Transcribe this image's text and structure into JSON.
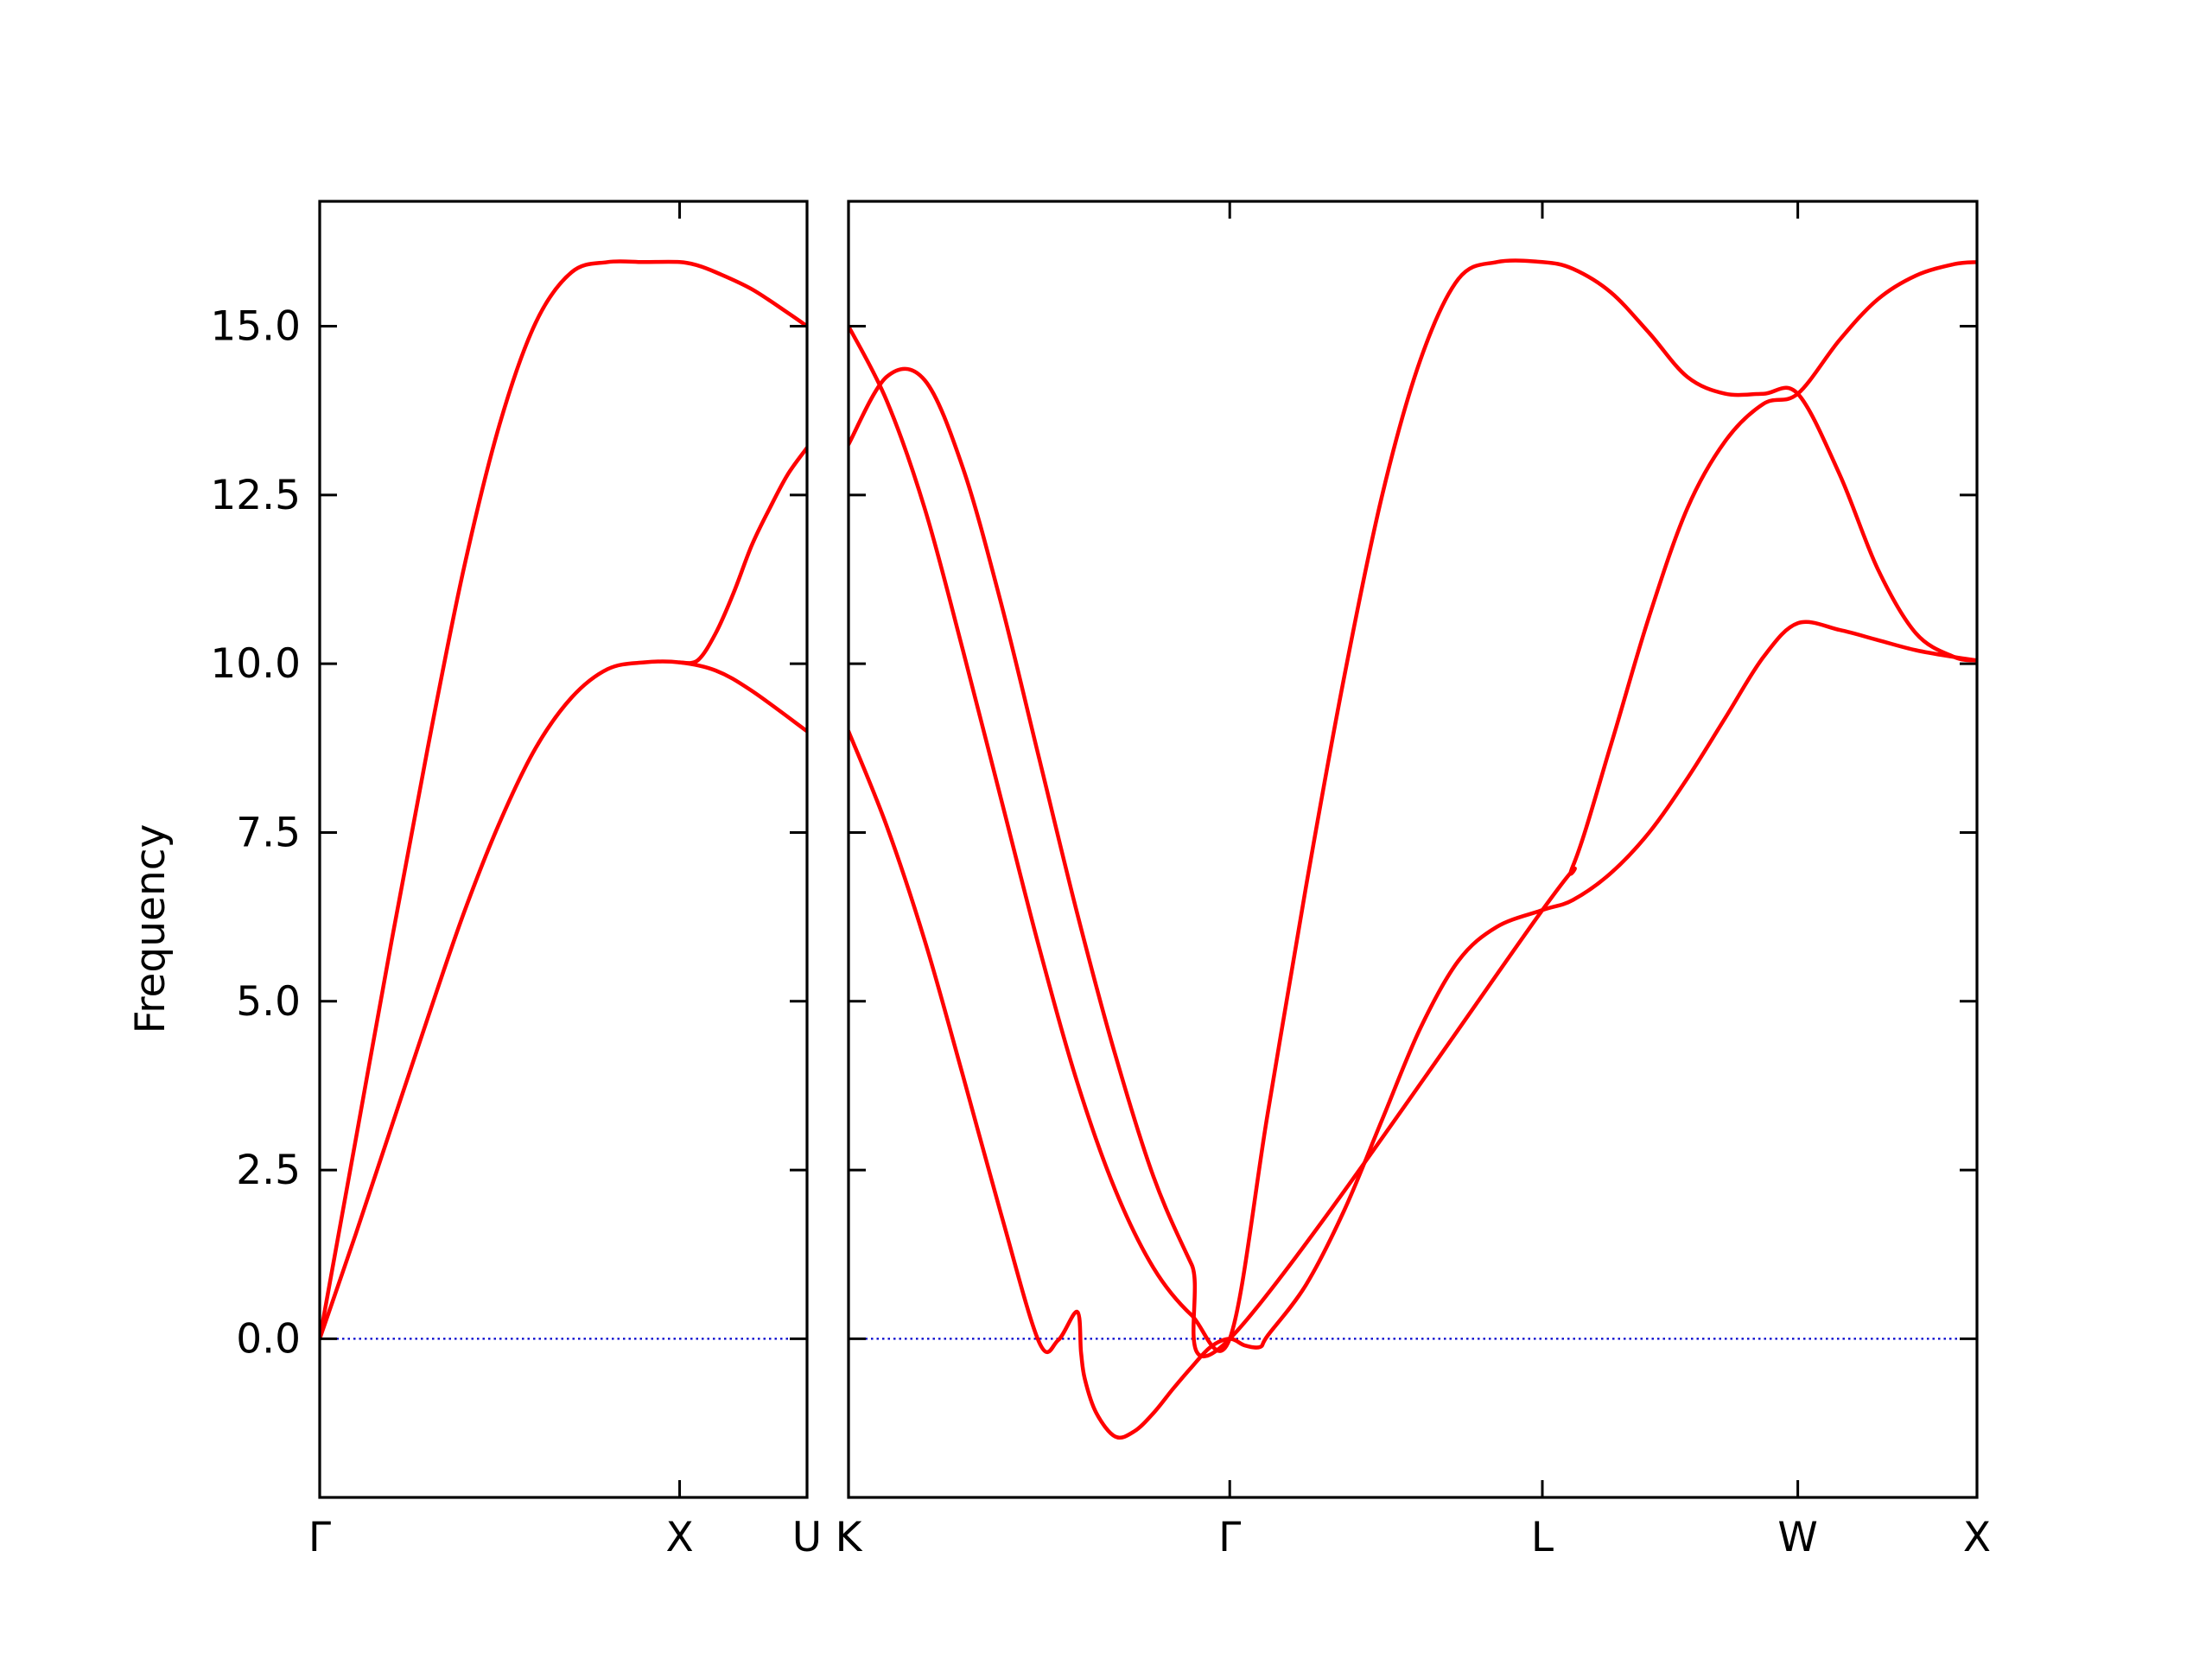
{
  "chart_data": {
    "type": "line",
    "ylabel": "Frequency",
    "ylim": [
      -2.35,
      16.85
    ],
    "yticks": [
      "0.0",
      "2.5",
      "5.0",
      "7.5",
      "10.0",
      "12.5",
      "15.0"
    ],
    "ytick_values": [
      0,
      2.5,
      5,
      7.5,
      10,
      12.5,
      15
    ],
    "grid": false,
    "colors": {
      "bands": "#ff0000",
      "zero_line": "#0000cc",
      "axes": "#000000"
    },
    "panels": [
      {
        "name": "Γ-X-U",
        "xlim": [
          0,
          1.354
        ],
        "ticks": [
          {
            "x": 0,
            "label": "Γ"
          },
          {
            "x": 1.0,
            "label": "X"
          },
          {
            "x": 1.354,
            "label": "U"
          }
        ],
        "bands": [
          {
            "x": [
              0,
              0.1,
              0.2,
              0.3,
              0.4,
              0.5,
              0.6,
              0.7,
              0.8,
              0.9,
              1.0,
              1.1,
              1.2,
              1.354
            ],
            "y": [
              0,
              1.55,
              3.15,
              4.75,
              6.3,
              7.65,
              8.75,
              9.5,
              9.92,
              10.02,
              10.02,
              9.9,
              9.6,
              9.0
            ]
          },
          {
            "x": [
              0,
              0.1,
              0.2,
              0.3,
              0.4,
              0.5,
              0.6,
              0.7,
              0.8,
              0.9,
              1.0,
              1.05,
              1.1,
              1.2,
              1.3,
              1.354
            ],
            "y": [
              0,
              2.95,
              5.9,
              8.75,
              11.4,
              13.55,
              15.05,
              15.8,
              15.95,
              15.95,
              15.95,
              15.9,
              15.8,
              15.55,
              15.2,
              15.0
            ]
          },
          {
            "x": [
              1.0,
              1.05,
              1.1,
              1.15,
              1.2,
              1.25,
              1.3,
              1.354
            ],
            "y": [
              10.02,
              10.05,
              10.45,
              11.05,
              11.75,
              12.3,
              12.8,
              13.2
            ]
          }
        ]
      },
      {
        "name": "K-Γ-L-W-X",
        "xlim": [
          0,
          2.96
        ],
        "ticks": [
          {
            "x": 0,
            "label": "K"
          },
          {
            "x": 1.0,
            "label": "Γ"
          },
          {
            "x": 1.82,
            "label": "L"
          },
          {
            "x": 2.49,
            "label": "W"
          },
          {
            "x": 2.96,
            "label": "X"
          }
        ],
        "bands": [
          {
            "x": [
              0,
              0.1,
              0.2,
              0.3,
              0.4,
              0.5,
              0.55,
              0.6,
              0.61,
              0.62,
              0.65,
              0.7,
              0.75,
              0.8,
              0.85,
              0.9,
              0.95,
              1.0,
              1.04,
              1.08,
              1.1,
              1.2,
              1.3,
              1.4,
              1.5,
              1.6,
              1.7,
              1.82,
              1.9,
              2.0,
              2.1,
              2.2,
              2.3,
              2.4,
              2.49,
              2.6,
              2.7,
              2.8,
              2.9,
              2.96
            ],
            "y": [
              9.0,
              7.6,
              5.9,
              3.9,
              1.85,
              -0.05,
              -0.02,
              0.4,
              -0.2,
              -0.6,
              -1.1,
              -1.45,
              -1.37,
              -1.1,
              -0.75,
              -0.42,
              -0.12,
              0.0,
              -0.1,
              -0.12,
              0.05,
              0.8,
              1.9,
              3.25,
              4.6,
              5.6,
              6.1,
              6.35,
              6.5,
              6.9,
              7.5,
              8.3,
              9.2,
              10.1,
              10.6,
              10.5,
              10.35,
              10.2,
              10.1,
              10.05
            ]
          },
          {
            "x": [
              0,
              0.1,
              0.2,
              0.3,
              0.4,
              0.5,
              0.6,
              0.7,
              0.8,
              0.9,
              1.0,
              1.1,
              1.2,
              1.3,
              1.4,
              1.5,
              1.6,
              1.7,
              1.82,
              1.9,
              2.0,
              2.1,
              2.2,
              2.3,
              2.4,
              2.49,
              2.6,
              2.7,
              2.8,
              2.9,
              2.96
            ],
            "y": [
              15.0,
              13.9,
              12.3,
              10.2,
              8.0,
              5.8,
              3.8,
              2.2,
              1.05,
              0.35,
              0.0,
              3.35,
              6.7,
              9.8,
              12.5,
              14.5,
              15.7,
              15.95,
              15.95,
              15.85,
              15.5,
              14.9,
              14.25,
              14.0,
              14.0,
              14.0,
              12.8,
              11.4,
              10.45,
              10.1,
              10.05
            ]
          },
          {
            "x": [
              0,
              0.1,
              0.2,
              0.3,
              0.4,
              0.5,
              0.6,
              0.7,
              0.8,
              0.9,
              1.0,
              1.82,
              1.9,
              2.0,
              2.1,
              2.2,
              2.3,
              2.4,
              2.49,
              2.6,
              2.7,
              2.8,
              2.9,
              2.96
            ],
            "y": [
              13.25,
              14.25,
              14.2,
              12.9,
              10.9,
              8.6,
              6.3,
              4.2,
              2.4,
              1.1,
              0.0,
              6.35,
              7.0,
              8.8,
              10.7,
              12.3,
              13.3,
              13.85,
              14.0,
              14.8,
              15.4,
              15.75,
              15.92,
              15.95
            ]
          }
        ]
      }
    ]
  }
}
